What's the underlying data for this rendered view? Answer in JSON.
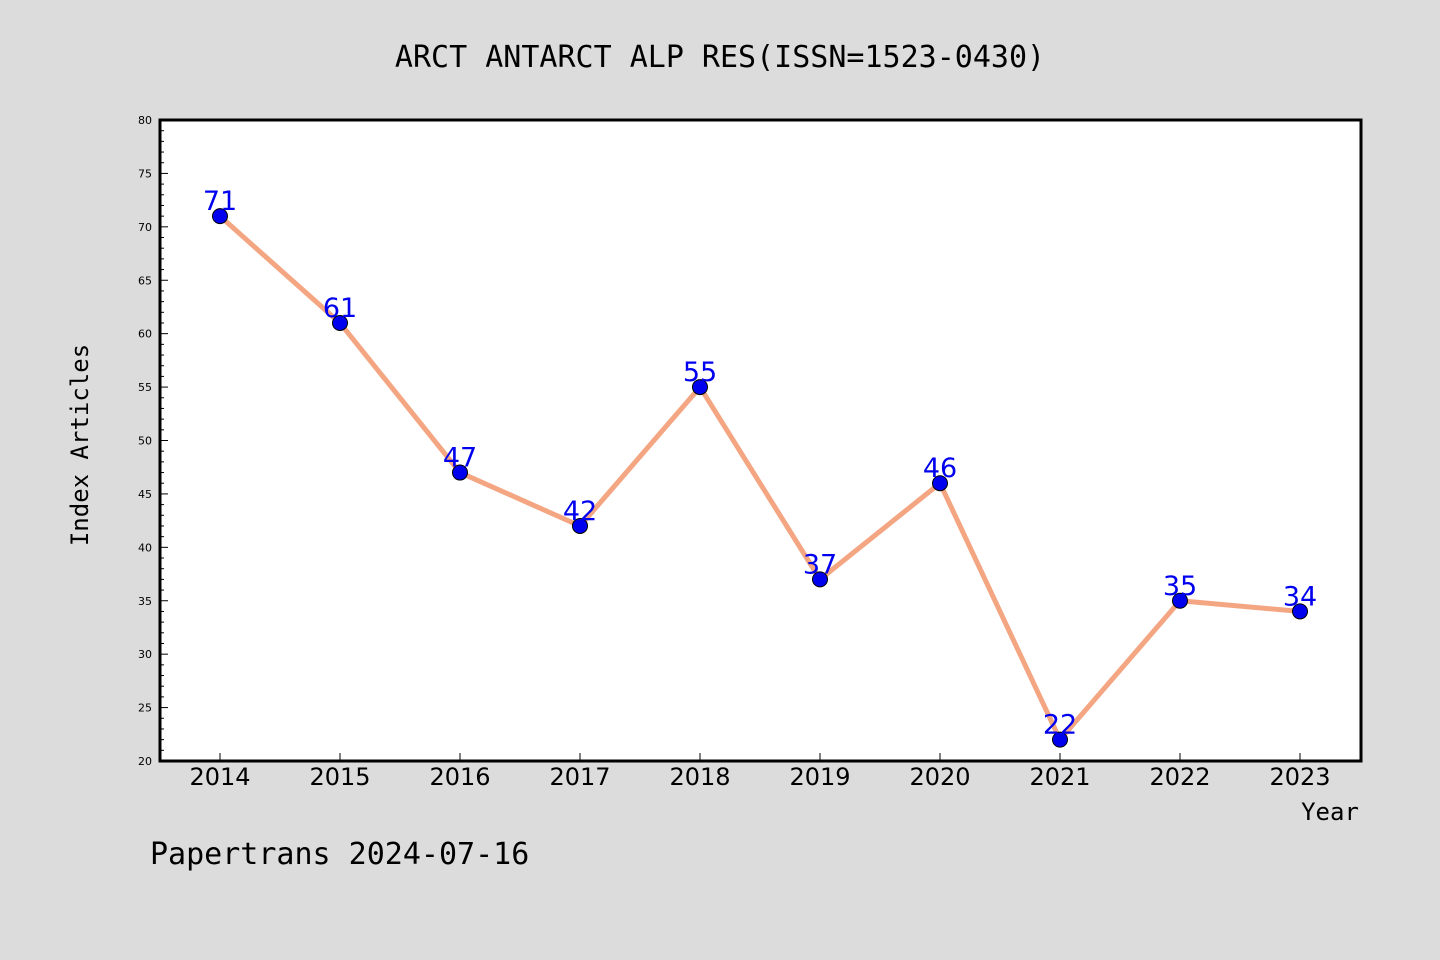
{
  "chart_data": {
    "type": "line",
    "title": "ARCT ANTARCT ALP RES(ISSN=1523-0430)",
    "xlabel": "Year",
    "ylabel": "Index Articles",
    "categories": [
      "2014",
      "2015",
      "2016",
      "2017",
      "2018",
      "2019",
      "2020",
      "2021",
      "2022",
      "2023"
    ],
    "values": [
      71,
      61,
      47,
      42,
      55,
      37,
      46,
      22,
      35,
      34
    ],
    "ylim": [
      20,
      80
    ],
    "yticks": [
      20,
      25,
      30,
      35,
      40,
      45,
      50,
      55,
      60,
      65,
      70,
      75,
      80
    ],
    "grid": false,
    "line_color": "#f4a582",
    "marker_color": "#0000ee",
    "label_color": "#0000ee"
  },
  "footer": "Papertrans 2024-07-16"
}
